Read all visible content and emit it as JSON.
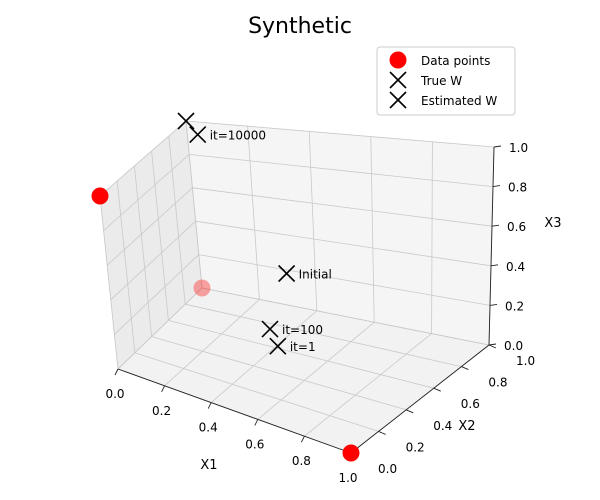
{
  "chart_data": {
    "type": "scatter3d",
    "title": "Synthetic",
    "xlabel": "X1",
    "ylabel": "X2",
    "zlabel": "X3",
    "xlim": [
      0,
      1
    ],
    "ylim": [
      0,
      1
    ],
    "zlim": [
      0,
      1
    ],
    "x_ticks": [
      "0.0",
      "0.2",
      "0.4",
      "0.6",
      "0.8",
      "1.0"
    ],
    "y_ticks": [
      "0.0",
      "0.2",
      "0.4",
      "0.6",
      "0.8",
      "1.0"
    ],
    "z_ticks": [
      "0.0",
      "0.2",
      "0.4",
      "0.6",
      "0.8",
      "1.0"
    ],
    "grid": true,
    "legend_position": "top-right",
    "legend": [
      {
        "label": "Data points",
        "marker": "circle",
        "color": "#ff0000"
      },
      {
        "label": "True W",
        "marker": "x",
        "color": "#000000"
      },
      {
        "label": "Estimated W",
        "marker": "x",
        "color": "#000000"
      }
    ],
    "series": [
      {
        "name": "Data points",
        "marker": "circle",
        "color": "#ff0000",
        "points": [
          {
            "x": 1,
            "y": 0,
            "z": 0
          },
          {
            "x": 0,
            "y": 1,
            "z": 0
          },
          {
            "x": 0,
            "y": 0,
            "z": 1
          }
        ]
      },
      {
        "name": "True W",
        "marker": "x",
        "color": "#000000",
        "points": [
          {
            "x": 0,
            "y": 1,
            "z": 1,
            "label": ""
          }
        ]
      },
      {
        "name": "Estimated W",
        "marker": "x",
        "color": "#000000",
        "points": [
          {
            "x": 0.05,
            "y": 0.95,
            "z": 0.95,
            "label": "it=10000"
          },
          {
            "x": 0.5,
            "y": 0.5,
            "z": 0.5,
            "label": "Initial"
          },
          {
            "x": 0.45,
            "y": 0.45,
            "z": 0.2,
            "label": "it=100"
          },
          {
            "x": 0.5,
            "y": 0.4,
            "z": 0.15,
            "label": "it=1"
          }
        ]
      }
    ]
  }
}
